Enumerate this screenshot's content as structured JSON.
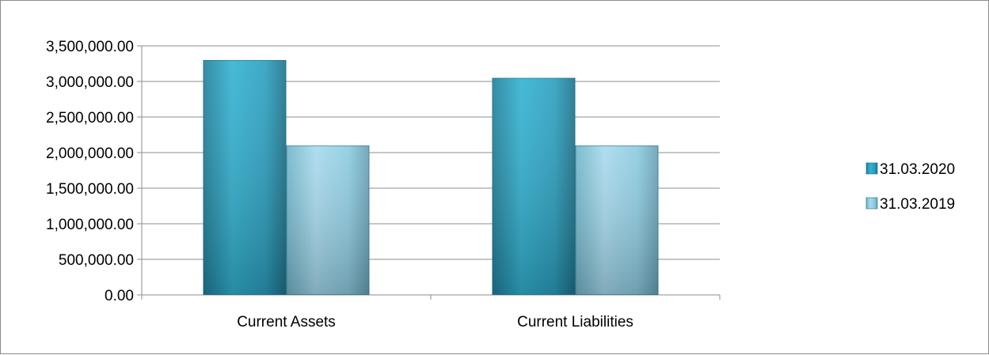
{
  "chart_data": {
    "type": "bar",
    "categories": [
      "Current Assets",
      "Current Liabilities"
    ],
    "series": [
      {
        "name": "31.03.2020",
        "values": [
          3300000,
          3050000
        ],
        "color": "#2aa3c4"
      },
      {
        "name": "31.03.2019",
        "values": [
          2100000,
          2100000
        ],
        "color": "#8fcde3"
      }
    ],
    "yticks": [
      "0.00",
      "500,000.00",
      "1,000,000.00",
      "1,500,000.00",
      "2,000,000.00",
      "2,500,000.00",
      "3,000,000.00",
      "3,500,000.00"
    ],
    "ylim": [
      0,
      3500000
    ],
    "ystep": 500000,
    "grid": true,
    "legend_position": "right",
    "title": "",
    "xlabel": "",
    "ylabel": ""
  }
}
